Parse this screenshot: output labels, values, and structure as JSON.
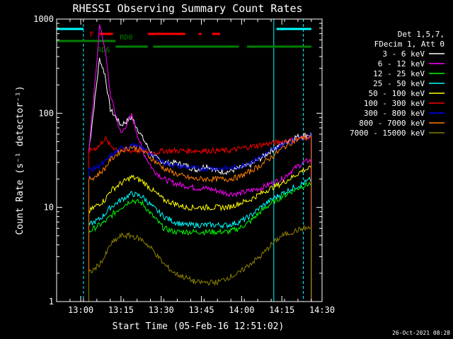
{
  "chart_data": {
    "type": "line",
    "title": "RHESSI Observing Summary Count Rates",
    "xlabel": "Start Time (05-Feb-16 12:51:02)",
    "ylabel": "Count Rate (s⁻¹ detector⁻¹)",
    "yscale": "log",
    "ylim": [
      1,
      1000
    ],
    "xlim": [
      "12:51",
      "14:30"
    ],
    "x_ticks": [
      "13:00",
      "13:15",
      "13:30",
      "13:45",
      "14:00",
      "14:15",
      "14:30"
    ],
    "y_ticks": [
      "1",
      "10",
      "100",
      "1000"
    ],
    "timestamp": "26-Oct-2021 08:28",
    "legend_position": "right",
    "legend_header": [
      "Det 1,5,7,",
      "FDecim 1, Att 0"
    ],
    "x_minutes": [
      0,
      12,
      14,
      16,
      18,
      20,
      24,
      28,
      32,
      36,
      40,
      44,
      48,
      52,
      56,
      60,
      64,
      68,
      72,
      76,
      80,
      84,
      88,
      92,
      95
    ],
    "series": [
      {
        "name": "3 - 6 keV",
        "color": "#ffffff",
        "segment": [
          12,
          92
        ],
        "values": [
          null,
          40,
          120,
          380,
          260,
          110,
          75,
          90,
          55,
          35,
          30,
          30,
          28,
          25,
          28,
          24,
          24,
          26,
          28,
          33,
          40,
          47,
          55,
          58,
          60
        ]
      },
      {
        "name": "6 - 12 keV",
        "color": "#ff00ff",
        "segment": [
          12,
          92
        ],
        "values": [
          null,
          40,
          160,
          850,
          500,
          160,
          60,
          95,
          40,
          25,
          20,
          18,
          17,
          16,
          16,
          15,
          14,
          14,
          15,
          16,
          18,
          20,
          25,
          30,
          32
        ]
      },
      {
        "name": "12 - 25 keV",
        "color": "#00ff00",
        "segment": [
          12,
          92
        ],
        "values": [
          null,
          5.5,
          6,
          6.5,
          7,
          8,
          10,
          12,
          11,
          8,
          6,
          5.5,
          5.5,
          5.5,
          5.5,
          5.5,
          5.5,
          6,
          7,
          9,
          11,
          13,
          15,
          17,
          18
        ]
      },
      {
        "name": "25 - 50 keV",
        "color": "#00ffff",
        "segment": [
          12,
          92
        ],
        "values": [
          null,
          6.5,
          7,
          7.5,
          8.5,
          10,
          12,
          14,
          13,
          10,
          8,
          7,
          6.5,
          6.5,
          6.5,
          6.5,
          6.5,
          7,
          8,
          10,
          12,
          14,
          16,
          18,
          20
        ]
      },
      {
        "name": "50 - 100 keV",
        "color": "#ffff00",
        "segment": [
          12,
          92
        ],
        "values": [
          null,
          9,
          10,
          11,
          12,
          15,
          18,
          21,
          19,
          15,
          12,
          11,
          10,
          10,
          10,
          10,
          10,
          11,
          12,
          14,
          16,
          18,
          21,
          25,
          26
        ]
      },
      {
        "name": "100 - 300 keV",
        "color": "#ff0000",
        "segment": [
          12,
          92
        ],
        "values": [
          null,
          40,
          42,
          45,
          55,
          45,
          40,
          40,
          40,
          38,
          40,
          40,
          40,
          40,
          40,
          40,
          40,
          42,
          44,
          46,
          48,
          50,
          52,
          55,
          56
        ]
      },
      {
        "name": "300 - 800 keV",
        "color": "#0000ff",
        "segment": [
          12,
          92
        ],
        "values": [
          null,
          25,
          26,
          28,
          30,
          35,
          42,
          46,
          42,
          35,
          30,
          28,
          27,
          26,
          26,
          26,
          26,
          27,
          30,
          34,
          40,
          46,
          52,
          56,
          57
        ]
      },
      {
        "name": "800 - 7000 keV",
        "color": "#ff8000",
        "segment": [
          12,
          92
        ],
        "values": [
          null,
          20,
          21,
          23,
          26,
          32,
          40,
          44,
          40,
          32,
          26,
          23,
          21,
          20,
          20,
          20,
          20,
          21,
          24,
          28,
          34,
          42,
          50,
          55,
          56
        ]
      },
      {
        "name": "7000 - 15000 keV",
        "color": "#8b8000",
        "segment": [
          12,
          92
        ],
        "values": [
          null,
          2,
          2.2,
          2.5,
          3,
          4,
          5,
          5,
          4.5,
          3.5,
          2.5,
          2,
          1.8,
          1.6,
          1.6,
          1.6,
          1.8,
          2,
          2.5,
          3,
          4,
          5,
          5.5,
          6,
          6
        ]
      }
    ],
    "status_flags": [
      {
        "label": "F",
        "color": "#ff0000",
        "intervals": [
          [
            16,
            21
          ],
          [
            34,
            48
          ],
          [
            53,
            54
          ],
          [
            58,
            61
          ]
        ]
      },
      {
        "label": "RD0",
        "color": "#008000",
        "intervals": [
          [
            0,
            22
          ]
        ]
      },
      {
        "label": "RD6",
        "color": "#008000",
        "intervals": [
          [
            22,
            34
          ],
          [
            36,
            68
          ],
          [
            71,
            95
          ]
        ]
      },
      {
        "label": "",
        "color": "#00ffff",
        "intervals": [
          [
            0,
            10
          ],
          [
            82,
            95
          ]
        ]
      }
    ],
    "vertical_markers": [
      {
        "minute": 10,
        "color": "#00ffff",
        "style": "dashed"
      },
      {
        "minute": 81,
        "color": "#00ffff",
        "style": "solid"
      },
      {
        "minute": 92,
        "color": "#00ffff",
        "style": "dashed"
      }
    ]
  }
}
